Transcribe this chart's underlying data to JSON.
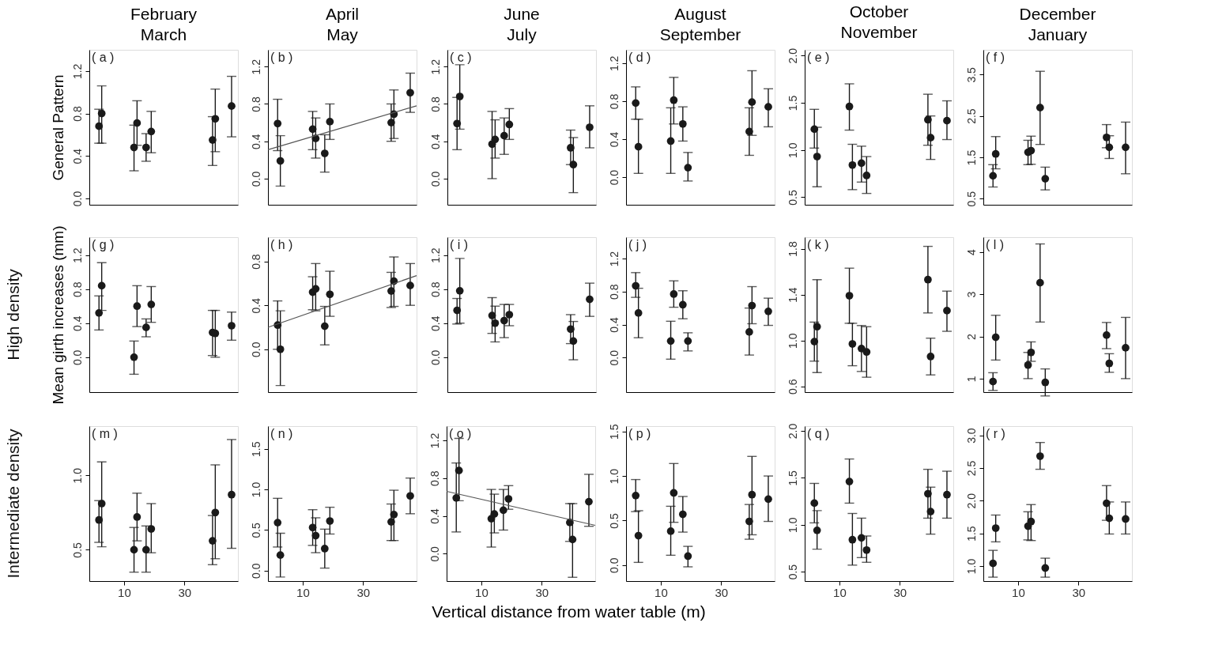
{
  "chart_data": [
    {
      "type": "scatter",
      "title": "February\nMarch",
      "ylabel": "General Pattern",
      "annotations": [
        "( a )"
      ],
      "marker": "circle",
      "tick_labels": "y",
      "xlim": [
        -1.5,
        47.7
      ],
      "xticks": [
        10,
        30
      ],
      "ylim": [
        -0.06,
        1.4
      ],
      "yticks": [
        {
          "value": 0,
          "label": "0.0"
        },
        0.4,
        0.8,
        1.2
      ],
      "series": [
        {
          "color": "#1a1a1a",
          "x": [
            1.7,
            2.6,
            13.3,
            14.3,
            17.3,
            19.0,
            39.3,
            40.2,
            45.6
          ],
          "values": [
            0.68,
            0.8,
            0.48,
            0.71,
            0.48,
            0.63,
            0.55,
            0.75,
            0.87
          ],
          "errors": [
            [
              0.52,
              0.84
            ],
            [
              0.52,
              1.06
            ],
            [
              0.26,
              0.69
            ],
            [
              0.5,
              0.92
            ],
            [
              0.35,
              0.61
            ],
            [
              0.43,
              0.82
            ],
            [
              0.31,
              0.77
            ],
            [
              0.44,
              1.03
            ],
            [
              0.58,
              1.15
            ]
          ]
        }
      ]
    },
    {
      "type": "scatter",
      "title": "April\nMay",
      "annotations": [
        "( b )"
      ],
      "marker": "circle",
      "tick_labels": "y",
      "xlim": [
        -1.5,
        47.7
      ],
      "xticks": [
        10,
        30
      ],
      "ylim": [
        -0.28,
        1.38
      ],
      "yticks": [
        {
          "value": 0,
          "label": "0.0"
        },
        0.4,
        0.8,
        1.2
      ],
      "series": [
        {
          "color": "#1a1a1a",
          "x": [
            1.7,
            2.6,
            13.3,
            14.3,
            17.3,
            19.0,
            39.3,
            40.2,
            45.6
          ],
          "values": [
            0.59,
            0.19,
            0.53,
            0.43,
            0.27,
            0.61,
            0.6,
            0.69,
            0.92
          ],
          "errors": [
            [
              0.3,
              0.85
            ],
            [
              -0.08,
              0.46
            ],
            [
              0.31,
              0.72
            ],
            [
              0.22,
              0.65
            ],
            [
              0.07,
              0.47
            ],
            [
              0.42,
              0.8
            ],
            [
              0.4,
              0.8
            ],
            [
              0.43,
              0.95
            ],
            [
              0.71,
              1.13
            ]
          ]
        },
        {
          "type": "line",
          "marker": "none",
          "color": "#555555",
          "x": [
            -1.5,
            47.7
          ],
          "values": [
            0.31,
            0.78
          ]
        }
      ]
    },
    {
      "type": "scatter",
      "title": "June\nJuly",
      "annotations": [
        "( c )"
      ],
      "marker": "circle",
      "tick_labels": "y",
      "xlim": [
        -1.5,
        47.7
      ],
      "xticks": [
        10,
        30
      ],
      "ylim": [
        -0.28,
        1.38
      ],
      "yticks": [
        {
          "value": 0,
          "label": "0.0"
        },
        0.4,
        0.8,
        1.2
      ],
      "series": [
        {
          "color": "#1a1a1a",
          "x": [
            1.7,
            2.6,
            13.3,
            14.3,
            17.3,
            19.0,
            39.3,
            40.2,
            45.6
          ],
          "values": [
            0.59,
            0.88,
            0.37,
            0.42,
            0.46,
            0.58,
            0.33,
            0.15,
            0.55
          ],
          "errors": [
            [
              0.31,
              0.87
            ],
            [
              0.53,
              1.22
            ],
            [
              0.0,
              0.72
            ],
            [
              0.22,
              0.63
            ],
            [
              0.26,
              0.65
            ],
            [
              0.42,
              0.75
            ],
            [
              0.15,
              0.52
            ],
            [
              -0.15,
              0.44
            ],
            [
              0.33,
              0.78
            ]
          ]
        }
      ]
    },
    {
      "type": "scatter",
      "title": "August\nSeptember",
      "annotations": [
        "( d )"
      ],
      "marker": "circle",
      "tick_labels": "y",
      "xlim": [
        -1.5,
        47.7
      ],
      "xticks": [
        10,
        30
      ],
      "ylim": [
        -0.29,
        1.34
      ],
      "yticks": [
        {
          "value": 0,
          "label": "0.0"
        },
        0.4,
        0.8,
        1.2
      ],
      "series": [
        {
          "color": "#1a1a1a",
          "x": [
            1.7,
            2.6,
            13.3,
            14.3,
            17.3,
            19.0,
            39.3,
            40.2,
            45.6
          ],
          "values": [
            0.78,
            0.32,
            0.38,
            0.81,
            0.56,
            0.1,
            0.48,
            0.79,
            0.74
          ],
          "errors": [
            [
              0.61,
              0.95
            ],
            [
              0.04,
              0.61
            ],
            [
              0.04,
              0.73
            ],
            [
              0.56,
              1.05
            ],
            [
              0.38,
              0.74
            ],
            [
              -0.04,
              0.26
            ],
            [
              0.23,
              0.73
            ],
            [
              0.44,
              1.12
            ],
            [
              0.53,
              0.93
            ]
          ]
        }
      ]
    },
    {
      "type": "scatter",
      "title": "October\nNovember",
      "annotations": [
        "( e )"
      ],
      "marker": "circle",
      "tick_labels": "y",
      "xlim": [
        -1.5,
        47.7
      ],
      "xticks": [
        10,
        30
      ],
      "ylim": [
        0.42,
        2.06
      ],
      "yticks": [
        0.5,
        {
          "value": 1,
          "label": "1.0"
        },
        1.5,
        {
          "value": 2,
          "label": "2.0"
        }
      ],
      "series": [
        {
          "color": "#1a1a1a",
          "x": [
            1.7,
            2.6,
            13.3,
            14.3,
            17.3,
            19.0,
            39.3,
            40.2,
            45.6
          ],
          "values": [
            1.22,
            0.93,
            1.46,
            0.84,
            0.86,
            0.73,
            1.32,
            1.13,
            1.31
          ],
          "errors": [
            [
              1.02,
              1.43
            ],
            [
              0.61,
              1.24
            ],
            [
              1.21,
              1.7
            ],
            [
              0.58,
              1.06
            ],
            [
              0.66,
              1.04
            ],
            [
              0.54,
              0.93
            ],
            [
              1.05,
              1.59
            ],
            [
              0.9,
              1.36
            ],
            [
              1.11,
              1.52
            ]
          ]
        }
      ]
    },
    {
      "type": "scatter",
      "title": "December\nJanuary",
      "annotations": [
        "( f )"
      ],
      "marker": "circle",
      "tick_labels": "y",
      "xlim": [
        -1.5,
        47.7
      ],
      "xticks": [
        10,
        30
      ],
      "ylim": [
        0.35,
        4.1
      ],
      "yticks": [
        0.5,
        1.5,
        2.5,
        3.5
      ],
      "series": [
        {
          "color": "#1a1a1a",
          "x": [
            1.7,
            2.6,
            13.3,
            14.3,
            17.3,
            19.0,
            39.3,
            40.2,
            45.6
          ],
          "values": [
            1.05,
            1.58,
            1.62,
            1.66,
            2.7,
            0.98,
            1.98,
            1.74,
            1.74
          ],
          "errors": [
            [
              0.78,
              1.32
            ],
            [
              1.22,
              2.0
            ],
            [
              1.32,
              1.91
            ],
            [
              1.33,
              2.01
            ],
            [
              1.81,
              3.58
            ],
            [
              0.71,
              1.26
            ],
            [
              1.73,
              2.29
            ],
            [
              1.47,
              2.02
            ],
            [
              1.1,
              2.35
            ]
          ]
        }
      ]
    },
    {
      "type": "scatter",
      "ylabel": "Mean girth increases (mm)",
      "annotations": [
        "( g )",
        "High density"
      ],
      "marker": "circle",
      "tick_labels": "y",
      "xlim": [
        -1.5,
        47.7
      ],
      "xticks": [
        10,
        30
      ],
      "ylim": [
        -0.41,
        1.41
      ],
      "yticks": [
        {
          "value": 0,
          "label": "0.0"
        },
        0.4,
        0.8,
        1.2
      ],
      "series": [
        {
          "color": "#1a1a1a",
          "x": [
            1.7,
            2.6,
            13.3,
            14.3,
            17.3,
            19.0,
            39.3,
            40.2,
            45.6
          ],
          "values": [
            0.52,
            0.84,
            0.0,
            0.6,
            0.35,
            0.62,
            0.29,
            0.28,
            0.37
          ],
          "errors": [
            [
              0.32,
              0.72
            ],
            [
              0.55,
              1.11
            ],
            [
              -0.2,
              0.19
            ],
            [
              0.36,
              0.84
            ],
            [
              0.24,
              0.45
            ],
            [
              0.41,
              0.83
            ],
            [
              0.02,
              0.55
            ],
            [
              0.0,
              0.55
            ],
            [
              0.2,
              0.53
            ]
          ]
        }
      ]
    },
    {
      "type": "scatter",
      "annotations": [
        "( h )"
      ],
      "marker": "circle",
      "tick_labels": "y",
      "xlim": [
        -1.5,
        47.7
      ],
      "xticks": [
        10,
        30
      ],
      "ylim": [
        -0.39,
        1.02
      ],
      "yticks": [
        {
          "value": 0,
          "label": "0.0"
        },
        0.4,
        0.8
      ],
      "series": [
        {
          "color": "#1a1a1a",
          "x": [
            1.7,
            2.6,
            13.3,
            14.3,
            17.3,
            19.0,
            39.3,
            40.2,
            45.6
          ],
          "values": [
            0.22,
            0.0,
            0.52,
            0.55,
            0.21,
            0.5,
            0.53,
            0.62,
            0.58
          ],
          "errors": [
            [
              0.0,
              0.44
            ],
            [
              -0.33,
              0.35
            ],
            [
              0.36,
              0.66
            ],
            [
              0.35,
              0.78
            ],
            [
              0.04,
              0.39
            ],
            [
              0.3,
              0.71
            ],
            [
              0.38,
              0.7
            ],
            [
              0.39,
              0.84
            ],
            [
              0.4,
              0.78
            ]
          ]
        },
        {
          "type": "line",
          "marker": "none",
          "color": "#555555",
          "x": [
            -1.5,
            47.7
          ],
          "values": [
            0.2,
            0.67
          ]
        }
      ]
    },
    {
      "type": "scatter",
      "annotations": [
        "( i )"
      ],
      "marker": "circle",
      "tick_labels": "y",
      "xlim": [
        -1.5,
        47.7
      ],
      "xticks": [
        10,
        30
      ],
      "ylim": [
        -0.41,
        1.41
      ],
      "yticks": [
        {
          "value": 0,
          "label": "0.0"
        },
        0.4,
        0.8,
        1.2
      ],
      "series": [
        {
          "color": "#1a1a1a",
          "x": [
            1.7,
            2.6,
            13.3,
            14.3,
            17.3,
            19.0,
            39.3,
            40.2,
            45.6
          ],
          "values": [
            0.55,
            0.78,
            0.49,
            0.4,
            0.43,
            0.5,
            0.33,
            0.19,
            0.68
          ],
          "errors": [
            [
              0.39,
              0.69
            ],
            [
              0.4,
              1.16
            ],
            [
              0.28,
              0.7
            ],
            [
              0.18,
              0.6
            ],
            [
              0.23,
              0.62
            ],
            [
              0.37,
              0.62
            ],
            [
              0.16,
              0.5
            ],
            [
              -0.03,
              0.42
            ],
            [
              0.48,
              0.87
            ]
          ]
        }
      ]
    },
    {
      "type": "scatter",
      "annotations": [
        "( j )"
      ],
      "marker": "circle",
      "tick_labels": "y",
      "xlim": [
        -1.5,
        47.7
      ],
      "xticks": [
        10,
        30
      ],
      "ylim": [
        -0.42,
        1.46
      ],
      "yticks": [
        {
          "value": 0,
          "label": "0.0"
        },
        0.4,
        0.8,
        1.2
      ],
      "series": [
        {
          "color": "#1a1a1a",
          "x": [
            1.7,
            2.6,
            13.3,
            14.3,
            17.3,
            19.0,
            39.3,
            40.2,
            45.6
          ],
          "values": [
            0.87,
            0.54,
            0.2,
            0.77,
            0.64,
            0.2,
            0.31,
            0.63,
            0.56
          ],
          "errors": [
            [
              0.73,
              1.03
            ],
            [
              0.24,
              0.84
            ],
            [
              -0.02,
              0.44
            ],
            [
              0.61,
              0.93
            ],
            [
              0.47,
              0.81
            ],
            [
              0.08,
              0.3
            ],
            [
              0.03,
              0.6
            ],
            [
              0.41,
              0.86
            ],
            [
              0.39,
              0.72
            ]
          ]
        }
      ]
    },
    {
      "type": "scatter",
      "annotations": [
        "( k )"
      ],
      "marker": "circle",
      "tick_labels": "y",
      "xlim": [
        -1.5,
        47.7
      ],
      "xticks": [
        10,
        30
      ],
      "ylim": [
        0.55,
        1.9
      ],
      "yticks": [
        0.6,
        {
          "value": 1,
          "label": "1.0"
        },
        1.4,
        1.8
      ],
      "series": [
        {
          "color": "#1a1a1a",
          "x": [
            1.7,
            2.6,
            13.3,
            14.3,
            17.3,
            19.0,
            39.3,
            40.2,
            45.6
          ],
          "values": [
            0.99,
            1.12,
            1.39,
            0.97,
            0.93,
            0.9,
            1.53,
            0.86,
            1.26
          ],
          "errors": [
            [
              0.82,
              1.16
            ],
            [
              0.72,
              1.53
            ],
            [
              1.15,
              1.63
            ],
            [
              0.78,
              1.15
            ],
            [
              0.73,
              1.13
            ],
            [
              0.68,
              1.12
            ],
            [
              1.24,
              1.82
            ],
            [
              0.7,
              1.02
            ],
            [
              1.08,
              1.43
            ]
          ]
        }
      ]
    },
    {
      "type": "scatter",
      "annotations": [
        "( l )"
      ],
      "marker": "circle",
      "tick_labels": "y",
      "xlim": [
        -1.5,
        47.7
      ],
      "xticks": [
        10,
        30
      ],
      "ylim": [
        0.68,
        4.35
      ],
      "yticks": [
        1,
        2,
        3,
        4
      ],
      "series": [
        {
          "color": "#1a1a1a",
          "x": [
            1.7,
            2.6,
            13.3,
            14.3,
            17.3,
            19.0,
            39.3,
            40.2,
            45.6
          ],
          "values": [
            0.93,
            1.98,
            1.32,
            1.62,
            3.27,
            0.91,
            2.03,
            1.36,
            1.73
          ],
          "errors": [
            [
              0.72,
              1.14
            ],
            [
              1.44,
              2.5
            ],
            [
              1.0,
              1.62
            ],
            [
              1.41,
              1.87
            ],
            [
              2.34,
              4.19
            ],
            [
              0.59,
              1.23
            ],
            [
              1.71,
              2.33
            ],
            [
              1.15,
              1.59
            ],
            [
              1.0,
              2.45
            ]
          ]
        }
      ]
    },
    {
      "type": "scatter",
      "annotations": [
        "( m )",
        "Intermediate density"
      ],
      "marker": "circle",
      "xlim": [
        -1.5,
        47.7
      ],
      "xticks": [
        10,
        30
      ],
      "ylim": [
        0.29,
        1.33
      ],
      "yticks": [
        0.5,
        {
          "value": 1,
          "label": "1.0"
        }
      ],
      "series": [
        {
          "color": "#1a1a1a",
          "x": [
            1.7,
            2.6,
            13.3,
            14.3,
            17.3,
            19.0,
            39.3,
            40.2,
            45.6
          ],
          "values": [
            0.7,
            0.81,
            0.5,
            0.72,
            0.5,
            0.64,
            0.56,
            0.75,
            0.87
          ],
          "errors": [
            [
              0.55,
              0.83
            ],
            [
              0.52,
              1.09
            ],
            [
              0.35,
              0.65
            ],
            [
              0.56,
              0.88
            ],
            [
              0.35,
              0.66
            ],
            [
              0.48,
              0.81
            ],
            [
              0.4,
              0.73
            ],
            [
              0.44,
              1.07
            ],
            [
              0.51,
              1.24
            ]
          ]
        }
      ]
    },
    {
      "type": "scatter",
      "annotations": [
        "( n )"
      ],
      "marker": "circle",
      "xlim": [
        -1.5,
        47.7
      ],
      "xticks": [
        10,
        30
      ],
      "ylim": [
        -0.13,
        1.78
      ],
      "yticks": [
        {
          "value": 0,
          "label": "0.0"
        },
        0.5,
        {
          "value": 1,
          "label": "1.0"
        },
        1.5
      ],
      "series": [
        {
          "color": "#1a1a1a",
          "x": [
            1.7,
            2.6,
            13.3,
            14.3,
            17.3,
            19.0,
            39.3,
            40.2,
            45.6
          ],
          "values": [
            0.59,
            0.19,
            0.53,
            0.43,
            0.27,
            0.61,
            0.6,
            0.69,
            0.92
          ],
          "errors": [
            [
              0.29,
              0.89
            ],
            [
              -0.08,
              0.46
            ],
            [
              0.31,
              0.75
            ],
            [
              0.22,
              0.65
            ],
            [
              0.03,
              0.51
            ],
            [
              0.45,
              0.78
            ],
            [
              0.37,
              0.82
            ],
            [
              0.37,
              0.99
            ],
            [
              0.7,
              1.14
            ]
          ]
        }
      ]
    },
    {
      "type": "scatter",
      "xlabel": "Vertical distance from water table (m)",
      "annotations": [
        "( o )"
      ],
      "marker": "circle",
      "xlim": [
        -1.5,
        47.7
      ],
      "xticks": [
        10,
        30
      ],
      "ylim": [
        -0.29,
        1.35
      ],
      "yticks": [
        {
          "value": 0,
          "label": "0.0"
        },
        0.4,
        0.8,
        1.2
      ],
      "series": [
        {
          "color": "#1a1a1a",
          "x": [
            1.7,
            2.6,
            13.3,
            14.3,
            17.3,
            19.0,
            39.3,
            40.2,
            45.6
          ],
          "values": [
            0.59,
            0.88,
            0.37,
            0.42,
            0.46,
            0.58,
            0.33,
            0.15,
            0.55
          ],
          "errors": [
            [
              0.23,
              0.96
            ],
            [
              0.56,
              1.22
            ],
            [
              0.07,
              0.68
            ],
            [
              0.22,
              0.63
            ],
            [
              0.25,
              0.68
            ],
            [
              0.47,
              0.72
            ],
            [
              0.13,
              0.53
            ],
            [
              -0.25,
              0.53
            ],
            [
              0.29,
              0.84
            ]
          ]
        },
        {
          "type": "line",
          "marker": "none",
          "color": "#555555",
          "x": [
            -1.5,
            47.7
          ],
          "values": [
            0.66,
            0.3
          ]
        }
      ]
    },
    {
      "type": "scatter",
      "annotations": [
        "( p )"
      ],
      "marker": "circle",
      "xlim": [
        -1.5,
        47.7
      ],
      "xticks": [
        10,
        30
      ],
      "ylim": [
        -0.18,
        1.56
      ],
      "yticks": [
        {
          "value": 0,
          "label": "0.0"
        },
        0.5,
        {
          "value": 1,
          "label": "1.0"
        },
        1.5
      ],
      "series": [
        {
          "color": "#1a1a1a",
          "x": [
            1.7,
            2.6,
            13.3,
            14.3,
            17.3,
            19.0,
            39.3,
            40.2,
            45.6
          ],
          "values": [
            0.78,
            0.33,
            0.38,
            0.81,
            0.57,
            0.1,
            0.49,
            0.79,
            0.74
          ],
          "errors": [
            [
              0.6,
              0.96
            ],
            [
              0.03,
              0.61
            ],
            [
              0.11,
              0.66
            ],
            [
              0.48,
              1.14
            ],
            [
              0.37,
              0.77
            ],
            [
              -0.02,
              0.21
            ],
            [
              0.29,
              0.68
            ],
            [
              0.34,
              1.22
            ],
            [
              0.49,
              1.0
            ]
          ]
        }
      ]
    },
    {
      "type": "scatter",
      "annotations": [
        "( q )"
      ],
      "marker": "circle",
      "xlim": [
        -1.5,
        47.7
      ],
      "xticks": [
        10,
        30
      ],
      "ylim": [
        0.4,
        2.05
      ],
      "yticks": [
        0.5,
        {
          "value": 1,
          "label": "1.0"
        },
        1.5,
        {
          "value": 2,
          "label": "2.0"
        }
      ],
      "series": [
        {
          "color": "#1a1a1a",
          "x": [
            1.7,
            2.6,
            13.3,
            14.3,
            17.3,
            19.0,
            39.3,
            40.2,
            45.6
          ],
          "values": [
            1.23,
            0.94,
            1.46,
            0.84,
            0.86,
            0.73,
            1.33,
            1.14,
            1.32
          ],
          "errors": [
            [
              1.02,
              1.44
            ],
            [
              0.74,
              1.15
            ],
            [
              1.23,
              1.7
            ],
            [
              0.57,
              1.12
            ],
            [
              0.65,
              1.07
            ],
            [
              0.6,
              0.88
            ],
            [
              1.07,
              1.59
            ],
            [
              0.9,
              1.4
            ],
            [
              1.07,
              1.57
            ]
          ]
        }
      ]
    },
    {
      "type": "scatter",
      "annotations": [
        "( r )"
      ],
      "marker": "circle",
      "xlim": [
        -1.5,
        47.7
      ],
      "xticks": [
        10,
        30
      ],
      "ylim": [
        0.77,
        3.14
      ],
      "yticks": [
        {
          "value": 1,
          "label": "1.0"
        },
        1.5,
        {
          "value": 2,
          "label": "2.0"
        },
        2.5,
        {
          "value": 3,
          "label": "3.0"
        }
      ],
      "series": [
        {
          "color": "#1a1a1a",
          "x": [
            1.7,
            2.6,
            13.3,
            14.3,
            17.3,
            19.0,
            39.3,
            40.2,
            45.6
          ],
          "values": [
            1.04,
            1.58,
            1.61,
            1.68,
            2.68,
            0.97,
            1.96,
            1.73,
            1.72
          ],
          "errors": [
            [
              0.83,
              1.24
            ],
            [
              1.37,
              1.78
            ],
            [
              1.4,
              1.83
            ],
            [
              1.39,
              1.94
            ],
            [
              2.48,
              2.89
            ],
            [
              0.83,
              1.12
            ],
            [
              1.7,
              2.23
            ],
            [
              1.49,
              1.98
            ],
            [
              1.49,
              1.98
            ]
          ]
        }
      ]
    }
  ]
}
